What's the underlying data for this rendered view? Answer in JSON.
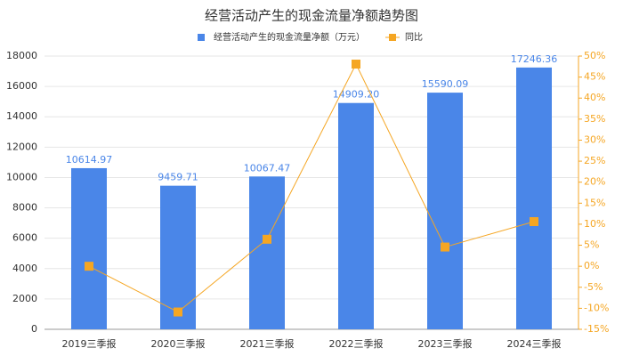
{
  "chart_data": {
    "type": "bar-line",
    "title": "经营活动产生的现金流量净额趋势图",
    "categories": [
      "2019三季报",
      "2020三季报",
      "2021三季报",
      "2022三季报",
      "2023三季报",
      "2024三季报"
    ],
    "series": [
      {
        "name": "经营活动产生的现金流量净额（万元）",
        "type": "bar",
        "color": "#4a86e8",
        "values": [
          10614.97,
          9459.71,
          10067.47,
          14909.2,
          15590.09,
          17246.36
        ],
        "value_labels": [
          "10614.97",
          "9459.71",
          "10067.47",
          "14909.20",
          "15590.09",
          "17246.36"
        ]
      },
      {
        "name": "同比",
        "type": "line",
        "axis": "y2",
        "color": "#f5a623",
        "values": [
          0,
          -10.88,
          6.42,
          48.09,
          4.57,
          10.62
        ]
      }
    ],
    "ylim": [
      0,
      18000
    ],
    "yticks": [
      0,
      2000,
      4000,
      6000,
      8000,
      10000,
      12000,
      14000,
      16000,
      18000
    ],
    "y2lim": [
      -15,
      50
    ],
    "y2ticks": [
      {
        "value": -15,
        "label": "-15%"
      },
      {
        "value": -10,
        "label": "-10%"
      },
      {
        "value": -5,
        "label": "-5%"
      },
      {
        "value": 0,
        "label": "0%"
      },
      {
        "value": 5,
        "label": "5%"
      },
      {
        "value": 10,
        "label": "10%"
      },
      {
        "value": 15,
        "label": "15%"
      },
      {
        "value": 20,
        "label": "20%"
      },
      {
        "value": 25,
        "label": "25%"
      },
      {
        "value": 30,
        "label": "30%"
      },
      {
        "value": 35,
        "label": "35%"
      },
      {
        "value": 40,
        "label": "40%"
      },
      {
        "value": 45,
        "label": "45%"
      },
      {
        "value": 50,
        "label": "50%"
      }
    ],
    "grid": true
  }
}
